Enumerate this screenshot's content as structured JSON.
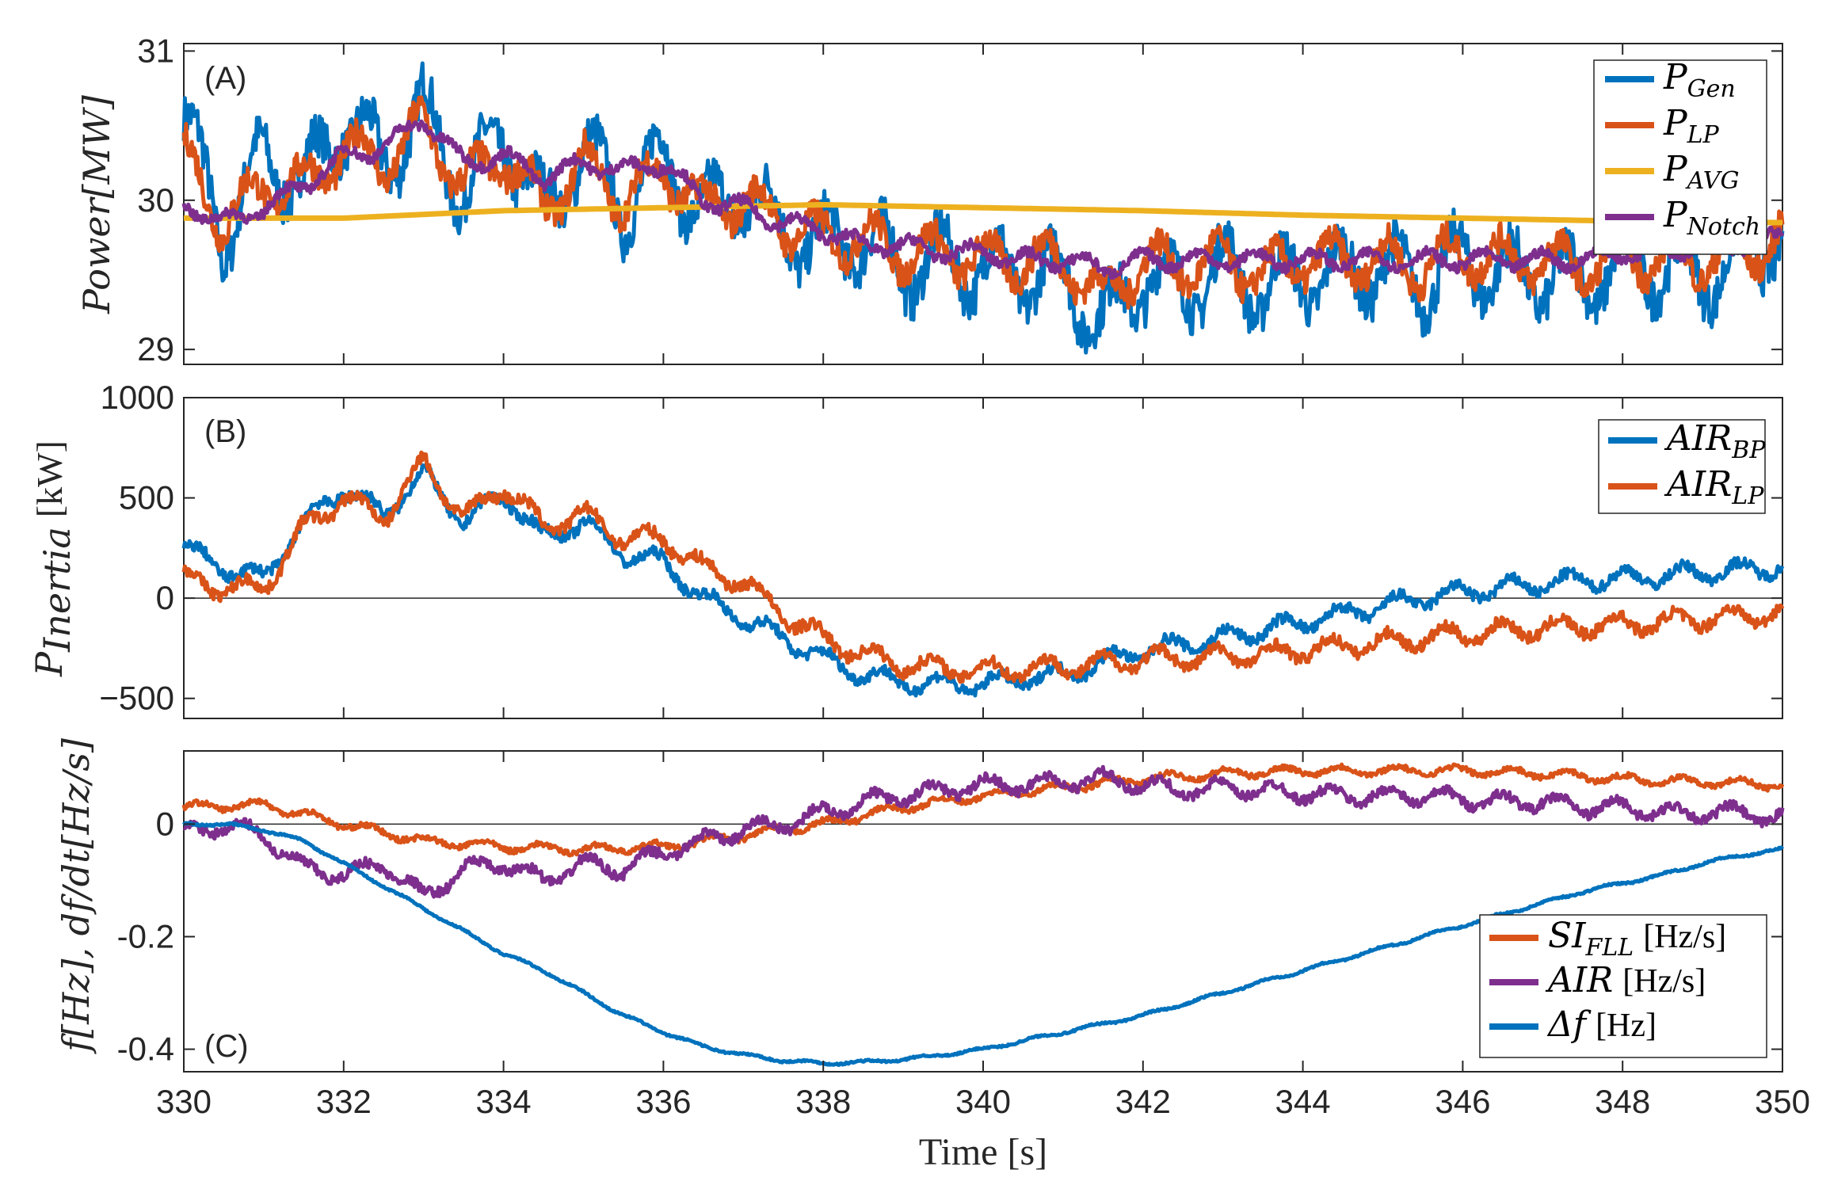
{
  "figure": {
    "xlabel": "Time [s]",
    "x_ticks": [
      "330",
      "332",
      "334",
      "336",
      "338",
      "340",
      "342",
      "344",
      "346",
      "348",
      "350"
    ]
  },
  "chart_data": [
    {
      "type": "line",
      "panel": "(A)",
      "ylabel": "Power[MW]",
      "ylim": [
        28.9,
        31.05
      ],
      "y_ticks": [
        29,
        30,
        31
      ],
      "y_tick_labels": [
        "29",
        "30",
        "31"
      ],
      "xlim": [
        330,
        350
      ],
      "series": [
        {
          "name": "P_Gen",
          "label_main": "P",
          "label_sub": "Gen",
          "color": "#0072BD",
          "x": [
            330,
            330.5,
            331,
            331.5,
            332,
            332.5,
            333,
            333.5,
            334,
            334.5,
            335,
            335.5,
            336,
            336.5,
            337,
            337.5,
            338,
            338.5,
            339,
            339.5,
            340,
            340.5,
            341,
            341.5,
            342,
            342.5,
            343,
            343.5,
            344,
            344.5,
            345,
            345.5,
            346,
            346.5,
            347,
            347.5,
            348,
            348.5,
            349,
            349.5,
            350
          ],
          "y": [
            30.55,
            29.75,
            30.3,
            30.1,
            30.55,
            30.25,
            30.6,
            30.05,
            30.45,
            29.9,
            30.35,
            29.95,
            30.3,
            29.9,
            30.05,
            29.8,
            29.7,
            29.75,
            29.55,
            29.6,
            29.55,
            29.5,
            29.5,
            29.15,
            29.5,
            29.4,
            29.55,
            29.4,
            29.5,
            29.5,
            29.55,
            29.45,
            29.6,
            29.5,
            29.5,
            29.45,
            29.6,
            29.55,
            29.5,
            29.6,
            29.8
          ],
          "amp": 0.38
        },
        {
          "name": "P_LP",
          "label_main": "P",
          "label_sub": "LP",
          "color": "#D95319",
          "x": [
            330,
            330.5,
            331,
            331.5,
            332,
            332.5,
            333,
            333.5,
            334,
            334.5,
            335,
            335.5,
            336,
            336.5,
            337,
            337.5,
            338,
            338.5,
            339,
            339.5,
            340,
            340.5,
            341,
            341.5,
            342,
            342.5,
            343,
            343.5,
            344,
            344.5,
            345,
            345.5,
            346,
            346.5,
            347,
            347.5,
            348,
            348.5,
            349,
            349.5,
            350
          ],
          "y": [
            30.3,
            29.85,
            30.1,
            30.1,
            30.35,
            30.25,
            30.5,
            30.1,
            30.3,
            29.95,
            30.25,
            30.0,
            30.2,
            29.95,
            30.0,
            29.85,
            29.75,
            29.75,
            29.65,
            29.65,
            29.6,
            29.6,
            29.6,
            29.35,
            29.6,
            29.55,
            29.6,
            29.5,
            29.6,
            29.6,
            29.6,
            29.55,
            29.65,
            29.6,
            29.6,
            29.55,
            29.65,
            29.6,
            29.6,
            29.65,
            29.75
          ],
          "amp": 0.25
        },
        {
          "name": "P_AVG",
          "label_main": "P",
          "label_sub": "AVG",
          "color": "#EDB120",
          "x": [
            330,
            332,
            334,
            336,
            338,
            340,
            342,
            344,
            346,
            348,
            350
          ],
          "y": [
            29.88,
            29.88,
            29.93,
            29.95,
            29.97,
            29.95,
            29.93,
            29.9,
            29.88,
            29.86,
            29.85
          ],
          "amp": 0.0
        },
        {
          "name": "P_Notch",
          "label_main": "P",
          "label_sub": "Notch",
          "color": "#7E2F8E",
          "x": [
            330,
            330.5,
            331,
            331.5,
            332,
            332.5,
            333,
            333.5,
            334,
            334.5,
            335,
            335.5,
            336,
            336.5,
            337,
            337.5,
            338,
            338.5,
            339,
            339.5,
            340,
            340.5,
            341,
            341.5,
            342,
            342.5,
            343,
            343.5,
            344,
            344.5,
            345,
            345.5,
            346,
            346.5,
            347,
            347.5,
            348,
            348.5,
            349,
            349.5,
            350
          ],
          "y": [
            29.98,
            29.85,
            29.95,
            30.1,
            30.3,
            30.35,
            30.55,
            30.25,
            30.3,
            30.15,
            30.25,
            30.2,
            30.25,
            30.0,
            29.95,
            29.85,
            29.8,
            29.7,
            29.7,
            29.65,
            29.65,
            29.6,
            29.6,
            29.55,
            29.6,
            29.6,
            29.6,
            29.6,
            29.6,
            29.6,
            29.6,
            29.6,
            29.6,
            29.6,
            29.6,
            29.6,
            29.65,
            29.65,
            29.7,
            29.7,
            29.75
          ],
          "amp": 0.09
        }
      ],
      "legend": "top-right"
    },
    {
      "type": "line",
      "panel": "(B)",
      "ylabel": "P_Inertia [kW]",
      "ylabel_main": "P",
      "ylabel_sub": "Inertia",
      "ylabel_unit": "[kW]",
      "ylim": [
        -600,
        1000
      ],
      "y_ticks": [
        -500,
        0,
        500,
        1000
      ],
      "y_tick_labels": [
        "−500",
        "0",
        "500",
        "1000"
      ],
      "xlim": [
        330,
        350
      ],
      "series": [
        {
          "name": "AIR_BP",
          "label_main": "AIR",
          "label_sub": "BP",
          "color": "#0072BD",
          "x": [
            330,
            330.5,
            331,
            331.5,
            332,
            332.5,
            333,
            333.5,
            334,
            334.5,
            335,
            335.5,
            336,
            336.5,
            337,
            337.5,
            338,
            338.5,
            339,
            339.5,
            340,
            340.5,
            341,
            341.5,
            342,
            342.5,
            343,
            343.5,
            344,
            344.5,
            345,
            345.5,
            346,
            346.5,
            347,
            347.5,
            348,
            348.5,
            349,
            349.5,
            350
          ],
          "y": [
            250,
            150,
            100,
            380,
            550,
            420,
            620,
            380,
            520,
            300,
            380,
            220,
            180,
            0,
            -100,
            -200,
            -300,
            -380,
            -420,
            -430,
            -430,
            -400,
            -380,
            -320,
            -260,
            -230,
            -200,
            -160,
            -120,
            -80,
            -40,
            0,
            30,
            50,
            70,
            90,
            100,
            110,
            130,
            140,
            160
          ],
          "amp": 70
        },
        {
          "name": "AIR_LP",
          "label_main": "AIR",
          "label_sub": "LP",
          "color": "#D95319",
          "x": [
            330,
            330.5,
            331,
            331.5,
            332,
            332.5,
            333,
            333.5,
            334,
            334.5,
            335,
            335.5,
            336,
            336.5,
            337,
            337.5,
            338,
            338.5,
            339,
            339.5,
            340,
            340.5,
            341,
            341.5,
            342,
            342.5,
            343,
            343.5,
            344,
            344.5,
            345,
            345.5,
            346,
            346.5,
            347,
            347.5,
            348,
            348.5,
            349,
            349.5,
            350
          ],
          "y": [
            100,
            50,
            50,
            350,
            500,
            400,
            680,
            400,
            560,
            360,
            420,
            300,
            300,
            150,
            80,
            -80,
            -200,
            -280,
            -330,
            -350,
            -360,
            -350,
            -340,
            -330,
            -300,
            -300,
            -290,
            -280,
            -260,
            -240,
            -220,
            -200,
            -180,
            -160,
            -150,
            -140,
            -130,
            -120,
            -100,
            -90,
            -70
          ],
          "amp": 75
        }
      ],
      "legend": "top-right"
    },
    {
      "type": "line",
      "panel": "(C)",
      "ylabel": "f[Hz], df/dt[Hz/s]",
      "ylim": [
        -0.44,
        0.13
      ],
      "y_ticks": [
        -0.4,
        -0.2,
        0
      ],
      "y_tick_labels": [
        "-0.4",
        "-0.2",
        "0"
      ],
      "xlim": [
        330,
        350
      ],
      "series": [
        {
          "name": "SI_FLL [Hz/s]",
          "label_main": "SI",
          "label_sub": "FLL",
          "label_unit": "[Hz/s]",
          "color": "#D95319",
          "x": [
            330,
            331,
            332,
            333,
            334,
            335,
            336,
            337,
            338,
            339,
            340,
            341,
            342,
            343,
            344,
            345,
            346,
            347,
            348,
            349,
            350
          ],
          "y": [
            0.03,
            0.035,
            0.0,
            -0.03,
            -0.04,
            -0.045,
            -0.04,
            -0.02,
            0.0,
            0.03,
            0.05,
            0.065,
            0.08,
            0.09,
            0.095,
            0.095,
            0.095,
            0.09,
            0.08,
            0.075,
            0.07
          ],
          "amp": 0.012
        },
        {
          "name": "AIR [Hz/s]",
          "label_main": "AIR",
          "label_sub": "",
          "label_unit": "[Hz/s]",
          "color": "#7E2F8E",
          "x": [
            330,
            330.5,
            331,
            331.5,
            332,
            332.5,
            333,
            333.5,
            334,
            334.5,
            335,
            335.5,
            336,
            336.5,
            337,
            337.5,
            338,
            338.5,
            339,
            339.5,
            340,
            340.5,
            341,
            341.5,
            342,
            342.5,
            343,
            343.5,
            344,
            344.5,
            345,
            345.5,
            346,
            346.5,
            347,
            347.5,
            348,
            348.5,
            349,
            349.5,
            350
          ],
          "y": [
            -0.02,
            0.0,
            -0.02,
            -0.08,
            -0.09,
            -0.07,
            -0.13,
            -0.08,
            -0.07,
            -0.1,
            -0.07,
            -0.08,
            -0.05,
            -0.03,
            -0.01,
            0.0,
            0.02,
            0.04,
            0.05,
            0.06,
            0.07,
            0.07,
            0.075,
            0.08,
            0.07,
            0.06,
            0.065,
            0.06,
            0.055,
            0.05,
            0.05,
            0.05,
            0.045,
            0.04,
            0.04,
            0.03,
            0.03,
            0.02,
            0.02,
            0.02,
            0.01
          ],
          "amp": 0.022
        },
        {
          "name": "Δf [Hz]",
          "label_main": "Δf",
          "label_sub": "",
          "label_unit": "[Hz]",
          "color": "#0072BD",
          "x": [
            330,
            330.5,
            331,
            331.5,
            332,
            332.5,
            333,
            333.5,
            334,
            334.5,
            335,
            335.5,
            336,
            336.5,
            337,
            337.5,
            338,
            338.5,
            339,
            339.5,
            340,
            340.5,
            341,
            341.5,
            342,
            342.5,
            343,
            343.5,
            344,
            344.5,
            345,
            345.5,
            346,
            346.5,
            347,
            347.5,
            348,
            348.5,
            349,
            349.5,
            350
          ],
          "y": [
            0.0,
            0.0,
            -0.01,
            -0.03,
            -0.07,
            -0.11,
            -0.15,
            -0.19,
            -0.23,
            -0.26,
            -0.3,
            -0.34,
            -0.37,
            -0.395,
            -0.41,
            -0.42,
            -0.425,
            -0.423,
            -0.418,
            -0.41,
            -0.4,
            -0.385,
            -0.37,
            -0.355,
            -0.34,
            -0.32,
            -0.3,
            -0.28,
            -0.26,
            -0.24,
            -0.22,
            -0.2,
            -0.18,
            -0.16,
            -0.14,
            -0.12,
            -0.105,
            -0.09,
            -0.07,
            -0.055,
            -0.045
          ],
          "amp": 0.004
        }
      ],
      "legend": "bottom-right"
    }
  ]
}
